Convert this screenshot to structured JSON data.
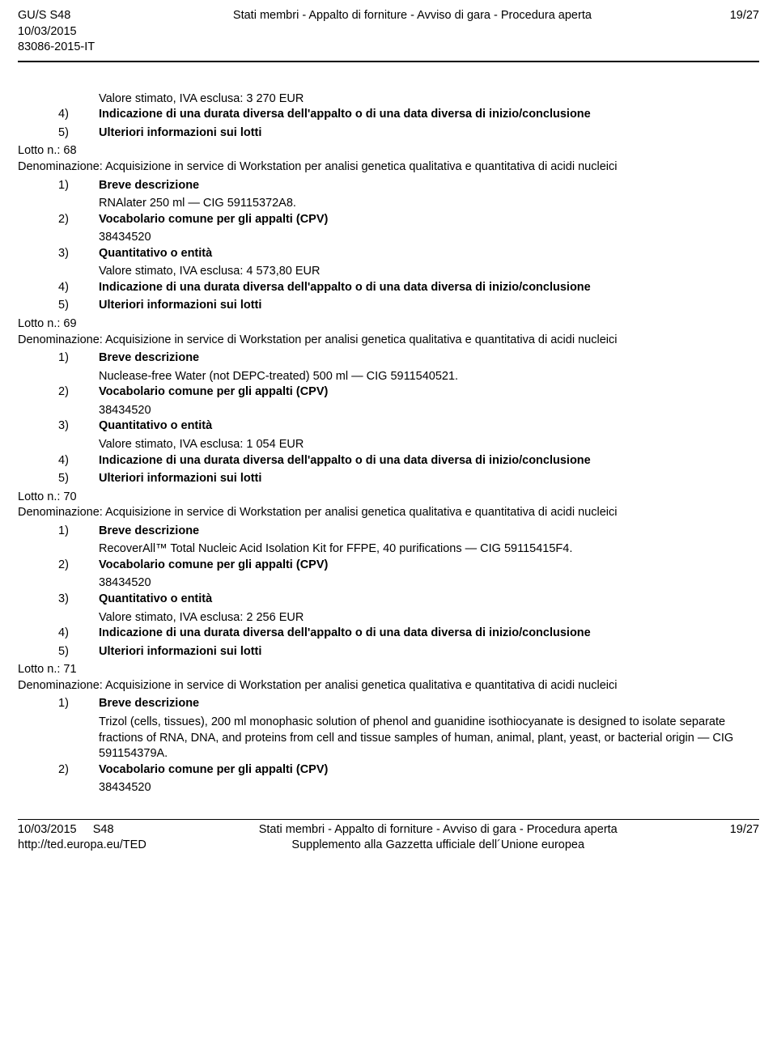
{
  "header": {
    "left_line1": "GU/S S48",
    "left_line2": "10/03/2015",
    "left_line3": "83086-2015-IT",
    "center": "Stati membri - Appalto di forniture - Avviso di gara - Procedura aperta",
    "right": "19/27"
  },
  "intro": {
    "value_line": "Valore stimato, IVA esclusa: 3 270 EUR",
    "row4_num": "4)",
    "row4_label": "Indicazione di una durata diversa dell'appalto o di una data diversa di inizio/conclusione",
    "row5_num": "5)",
    "row5_label": "Ulteriori informazioni sui lotti"
  },
  "lots": [
    {
      "lotto": "Lotto n.: 68",
      "denom": "Denominazione: Acquisizione in service di Workstation per analisi genetica qualitativa e quantitativa di acidi nucleici",
      "r1_num": "1)",
      "r1_label": "Breve descrizione",
      "r1_text": "RNAlater 250 ml — CIG 59115372A8.",
      "r2_num": "2)",
      "r2_label": "Vocabolario comune per gli appalti (CPV)",
      "r2_text": "38434520",
      "r3_num": "3)",
      "r3_label": "Quantitativo o entità",
      "r3_text": "Valore stimato, IVA esclusa: 4 573,80 EUR",
      "r4_num": "4)",
      "r4_label": "Indicazione di una durata diversa dell'appalto o di una data diversa di inizio/conclusione",
      "r5_num": "5)",
      "r5_label": "Ulteriori informazioni sui lotti"
    },
    {
      "lotto": "Lotto n.: 69",
      "denom": "Denominazione: Acquisizione in service di Workstation per analisi genetica qualitativa e quantitativa di acidi nucleici",
      "r1_num": "1)",
      "r1_label": "Breve descrizione",
      "r1_text": "Nuclease-free Water (not DEPC-treated) 500 ml — CIG 5911540521.",
      "r2_num": "2)",
      "r2_label": "Vocabolario comune per gli appalti (CPV)",
      "r2_text": "38434520",
      "r3_num": "3)",
      "r3_label": "Quantitativo o entità",
      "r3_text": "Valore stimato, IVA esclusa: 1 054 EUR",
      "r4_num": "4)",
      "r4_label": "Indicazione di una durata diversa dell'appalto o di una data diversa di inizio/conclusione",
      "r5_num": "5)",
      "r5_label": "Ulteriori informazioni sui lotti"
    },
    {
      "lotto": "Lotto n.: 70",
      "denom": "Denominazione: Acquisizione in service di Workstation per analisi genetica qualitativa e quantitativa di acidi nucleici",
      "r1_num": "1)",
      "r1_label": "Breve descrizione",
      "r1_text": "RecoverAll™ Total Nucleic Acid Isolation Kit for FFPE, 40 purifications — CIG 59115415F4.",
      "r2_num": "2)",
      "r2_label": "Vocabolario comune per gli appalti (CPV)",
      "r2_text": "38434520",
      "r3_num": "3)",
      "r3_label": "Quantitativo o entità",
      "r3_text": "Valore stimato, IVA esclusa: 2 256 EUR",
      "r4_num": "4)",
      "r4_label": "Indicazione di una durata diversa dell'appalto o di una data diversa di inizio/conclusione",
      "r5_num": "5)",
      "r5_label": "Ulteriori informazioni sui lotti"
    },
    {
      "lotto": "Lotto n.: 71",
      "denom": "Denominazione: Acquisizione in service di Workstation per analisi genetica qualitativa e quantitativa di acidi nucleici",
      "r1_num": "1)",
      "r1_label": "Breve descrizione",
      "r1_text": "Trizol (cells, tissues), 200 ml monophasic solution of phenol and guanidine isothiocyanate is designed to isolate separate fractions of RNA, DNA, and proteins from cell and tissue samples of human, animal, plant, yeast, or bacterial origin — CIG 591154379A.",
      "r2_num": "2)",
      "r2_label": "Vocabolario comune per gli appalti (CPV)",
      "r2_text": "38434520"
    }
  ],
  "footer": {
    "left_line1": "10/03/2015",
    "left_line1b": "S48",
    "left_line2": "http://ted.europa.eu/TED",
    "center_line1": "Stati membri - Appalto di forniture - Avviso di gara - Procedura aperta",
    "center_line2": "Supplemento alla Gazzetta ufficiale dell´Unione europea",
    "right": "19/27"
  }
}
